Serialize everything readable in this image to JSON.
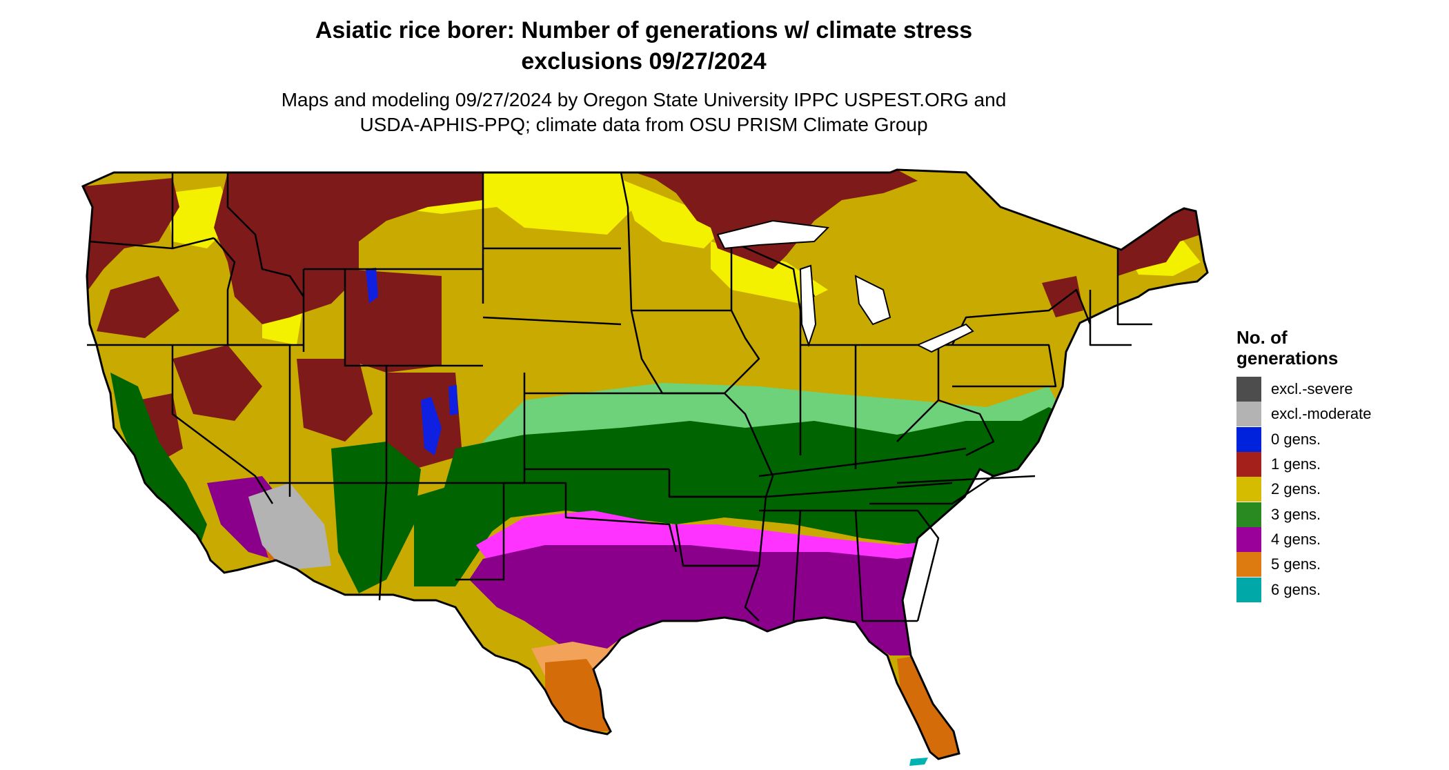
{
  "title": {
    "line1": "Asiatic rice borer: Number of generations w/ climate stress",
    "line2": "exclusions 09/27/2024"
  },
  "subtitle": {
    "line1": "Maps and modeling 09/27/2024 by Oregon State University IPPC USPEST.ORG and",
    "line2": "USDA-APHIS-PPQ; climate data from OSU PRISM Climate Group"
  },
  "legend": {
    "title_line1": "No. of",
    "title_line2": "generations",
    "items": [
      {
        "label": "excl.-severe",
        "color": "#4d4d4d"
      },
      {
        "label": "excl.-moderate",
        "color": "#b3b3b3"
      },
      {
        "label": "0 gens.",
        "color": "#0022dd"
      },
      {
        "label": "1 gens.",
        "color": "#a3211a"
      },
      {
        "label": "2 gens.",
        "color": "#d6bc00"
      },
      {
        "label": "3 gens.",
        "color": "#2a8a22"
      },
      {
        "label": "4 gens.",
        "color": "#9a009a"
      },
      {
        "label": "5 gens.",
        "color": "#dd7a10"
      },
      {
        "label": "6 gens.",
        "color": "#00a8a8"
      }
    ]
  },
  "map_colors": {
    "one_gen_dark": "#7e1a1a",
    "two_gen_dark": "#c9aa00",
    "two_gen_light": "#f3f000",
    "three_gen_dark": "#006400",
    "three_gen_light": "#6ed27a",
    "four_gen_dark": "#8b008b",
    "four_gen_light": "#ff33ff",
    "five_gen_dark": "#d56c0a",
    "five_gen_light": "#f3a25a",
    "zero_gen": "#1020e0",
    "excl_moderate": "#b3b3b3",
    "six_gen": "#00b3b3",
    "borders": "#000000"
  }
}
